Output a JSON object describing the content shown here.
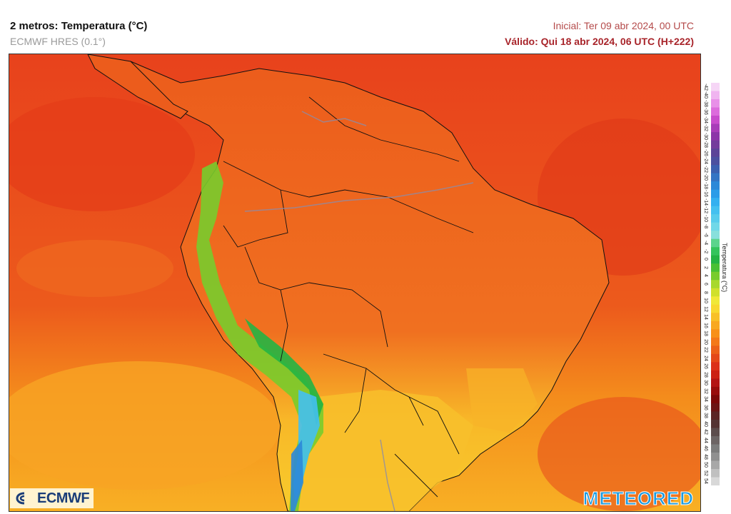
{
  "header": {
    "title": "2 metros: Temperatura (°C)",
    "model": "ECMWF HRES (0.1°)",
    "init": "Inicial: Ter 09 abr 2024, 00 UTC",
    "valid": "Válido: Qui 18 abr 2024, 06 UTC (H+222)"
  },
  "legend": {
    "title": "Temperatura (°C)",
    "ticks": [
      "-42",
      "-40",
      "-38",
      "-36",
      "-34",
      "-32",
      "-30",
      "-28",
      "-26",
      "-24",
      "-22",
      "-20",
      "-18",
      "-16",
      "-14",
      "-12",
      "-10",
      "-8",
      "-6",
      "-4",
      "-2",
      "0",
      "2",
      "4",
      "6",
      "8",
      "10",
      "12",
      "14",
      "16",
      "18",
      "20",
      "22",
      "24",
      "26",
      "28",
      "30",
      "32",
      "34",
      "36",
      "38",
      "40",
      "42",
      "44",
      "46",
      "48",
      "50",
      "52",
      "54"
    ],
    "colors": [
      "#f6d6f6",
      "#f0b4f0",
      "#e890e8",
      "#dc6cdc",
      "#c84ccc",
      "#a83cb8",
      "#8c34a8",
      "#743c9c",
      "#5c4498",
      "#4c50a0",
      "#3c60b0",
      "#3474c4",
      "#2c88d8",
      "#2c9ce8",
      "#34b0f0",
      "#44c0f0",
      "#58ccec",
      "#70d8e8",
      "#88e0dc",
      "#5cd48c",
      "#34c45c",
      "#24b444",
      "#48c034",
      "#78cc2c",
      "#a8d82c",
      "#d0e02c",
      "#f0e838",
      "#f8d830",
      "#f8c028",
      "#f8a820",
      "#f89018",
      "#f47818",
      "#ec6018",
      "#e44818",
      "#dc3018",
      "#cc2014",
      "#b41414",
      "#980c0c",
      "#7c0808",
      "#6c1414",
      "#5c2424",
      "#543434",
      "#5c4c4c",
      "#6c6464",
      "#7c7c7c",
      "#909090",
      "#a8a8a8",
      "#c0c0c0",
      "#d8d8d8"
    ]
  },
  "logos": {
    "left": "ECMWF",
    "right": "METEORED"
  }
}
